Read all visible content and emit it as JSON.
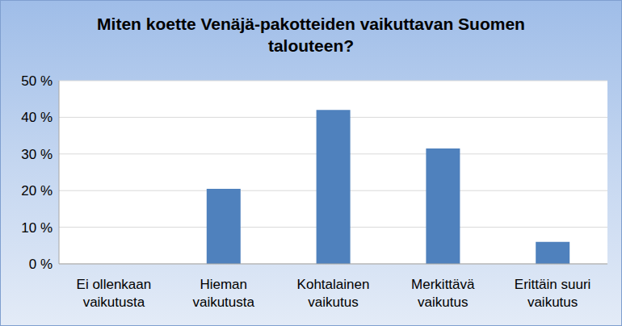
{
  "chart_data": {
    "type": "bar",
    "title": "Miten koette Venäjä-pakotteiden vaikuttavan Suomen talouteen?",
    "categories": [
      "Ei ollenkaan vaikutusta",
      "Hieman vaikutusta",
      "Kohtalainen vaikutus",
      "Merkittävä vaikutus",
      "Erittäin suuri vaikutus"
    ],
    "values": [
      0,
      20.5,
      42,
      31.5,
      6
    ],
    "color": "#4f81bd",
    "ylim": [
      0,
      50
    ],
    "yticks": [
      {
        "value": 0,
        "label": "0 %"
      },
      {
        "value": 10,
        "label": "10 %"
      },
      {
        "value": 20,
        "label": "20 %"
      },
      {
        "value": 30,
        "label": "30 %"
      },
      {
        "value": 40,
        "label": "40 %"
      },
      {
        "value": 50,
        "label": "50 %"
      }
    ],
    "grid": true
  }
}
